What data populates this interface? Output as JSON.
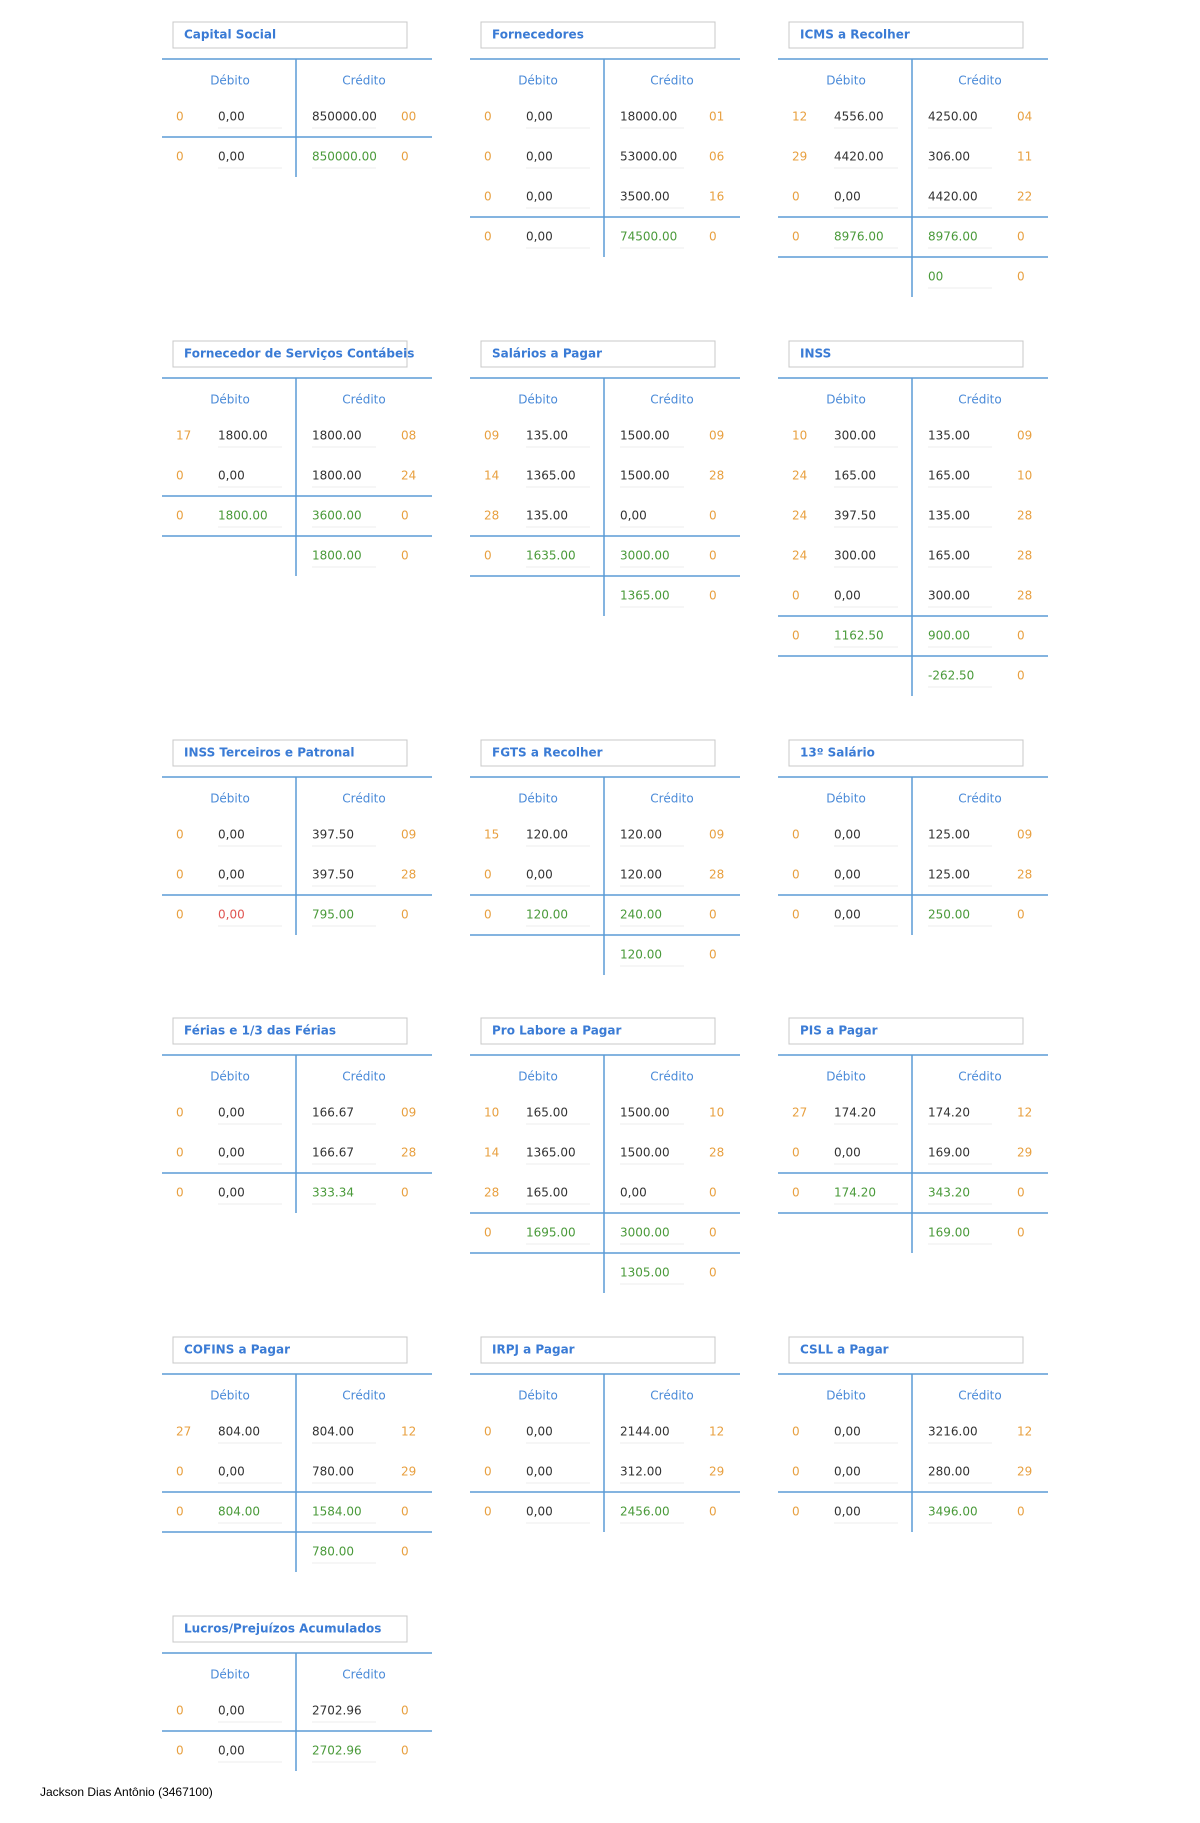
{
  "labels": {
    "debit": "Débito",
    "credit": "Crédito"
  },
  "accounts": [
    {
      "title": "Capital Social",
      "rows": [
        [
          "0",
          "0,00",
          "850000.00",
          "00"
        ]
      ],
      "total": [
        "0",
        "0,00",
        "850000.00",
        "0"
      ]
    },
    {
      "title": "Fornecedores",
      "rows": [
        [
          "0",
          "0,00",
          "18000.00",
          "01"
        ],
        [
          "0",
          "0,00",
          "53000.00",
          "06"
        ],
        [
          "0",
          "0,00",
          "3500.00",
          "16"
        ]
      ],
      "total": [
        "0",
        "0,00",
        "74500.00",
        "0"
      ]
    },
    {
      "title": "ICMS a Recolher",
      "rows": [
        [
          "12",
          "4556.00",
          "4250.00",
          "04"
        ],
        [
          "29",
          "4420.00",
          "306.00",
          "11"
        ],
        [
          "0",
          "0,00",
          "4420.00",
          "22"
        ]
      ],
      "total": [
        "0",
        "8976.00",
        "8976.00",
        "0"
      ],
      "balance": [
        "00",
        "0"
      ]
    },
    {
      "title": "Fornecedor de Serviços Contábeis",
      "rows": [
        [
          "17",
          "1800.00",
          "1800.00",
          "08"
        ],
        [
          "0",
          "0,00",
          "1800.00",
          "24"
        ]
      ],
      "total": [
        "0",
        "1800.00",
        "3600.00",
        "0"
      ],
      "balance": [
        "1800.00",
        "0"
      ]
    },
    {
      "title": "Salários a Pagar",
      "rows": [
        [
          "09",
          "135.00",
          "1500.00",
          "09"
        ],
        [
          "14",
          "1365.00",
          "1500.00",
          "28"
        ],
        [
          "28",
          "135.00",
          "0,00",
          "0"
        ]
      ],
      "total": [
        "0",
        "1635.00",
        "3000.00",
        "0"
      ],
      "balance": [
        "1365.00",
        "0"
      ]
    },
    {
      "title": "INSS",
      "rows": [
        [
          "10",
          "300.00",
          "135.00",
          "09"
        ],
        [
          "24",
          "165.00",
          "165.00",
          "10"
        ],
        [
          "24",
          "397.50",
          "135.00",
          "28"
        ],
        [
          "24",
          "300.00",
          "165.00",
          "28"
        ],
        [
          "0",
          "0,00",
          "300.00",
          "28"
        ]
      ],
      "total": [
        "0",
        "1162.50",
        "900.00",
        "0"
      ],
      "balance": [
        "-262.50",
        "0"
      ]
    },
    {
      "title": "INSS Terceiros e Patronal",
      "rows": [
        [
          "0",
          "0,00",
          "397.50",
          "09"
        ],
        [
          "0",
          "0,00",
          "397.50",
          "28"
        ]
      ],
      "total": [
        "0",
        "0,00",
        "795.00",
        "0"
      ],
      "total_debit_color": "#e05552"
    },
    {
      "title": "FGTS a Recolher",
      "rows": [
        [
          "15",
          "120.00",
          "120.00",
          "09"
        ],
        [
          "0",
          "0,00",
          "120.00",
          "28"
        ]
      ],
      "total": [
        "0",
        "120.00",
        "240.00",
        "0"
      ],
      "balance": [
        "120.00",
        "0"
      ]
    },
    {
      "title": "13º Salário",
      "rows": [
        [
          "0",
          "0,00",
          "125.00",
          "09"
        ],
        [
          "0",
          "0,00",
          "125.00",
          "28"
        ]
      ],
      "total": [
        "0",
        "0,00",
        "250.00",
        "0"
      ]
    },
    {
      "title": "Férias e 1/3 das Férias",
      "rows": [
        [
          "0",
          "0,00",
          "166.67",
          "09"
        ],
        [
          "0",
          "0,00",
          "166.67",
          "28"
        ]
      ],
      "total": [
        "0",
        "0,00",
        "333.34",
        "0"
      ]
    },
    {
      "title": "Pro Labore a Pagar",
      "rows": [
        [
          "10",
          "165.00",
          "1500.00",
          "10"
        ],
        [
          "14",
          "1365.00",
          "1500.00",
          "28"
        ],
        [
          "28",
          "165.00",
          "0,00",
          "0"
        ]
      ],
      "total": [
        "0",
        "1695.00",
        "3000.00",
        "0"
      ],
      "balance": [
        "1305.00",
        "0"
      ]
    },
    {
      "title": "PIS a Pagar",
      "rows": [
        [
          "27",
          "174.20",
          "174.20",
          "12"
        ],
        [
          "0",
          "0,00",
          "169.00",
          "29"
        ]
      ],
      "total": [
        "0",
        "174.20",
        "343.20",
        "0"
      ],
      "balance": [
        "169.00",
        "0"
      ]
    },
    {
      "title": "COFINS a Pagar",
      "rows": [
        [
          "27",
          "804.00",
          "804.00",
          "12"
        ],
        [
          "0",
          "0,00",
          "780.00",
          "29"
        ]
      ],
      "total": [
        "0",
        "804.00",
        "1584.00",
        "0"
      ],
      "balance": [
        "780.00",
        "0"
      ]
    },
    {
      "title": "IRPJ a Pagar",
      "rows": [
        [
          "0",
          "0,00",
          "2144.00",
          "12"
        ],
        [
          "0",
          "0,00",
          "312.00",
          "29"
        ]
      ],
      "total": [
        "0",
        "0,00",
        "2456.00",
        "0"
      ]
    },
    {
      "title": "CSLL a Pagar",
      "rows": [
        [
          "0",
          "0,00",
          "3216.00",
          "12"
        ],
        [
          "0",
          "0,00",
          "280.00",
          "29"
        ]
      ],
      "total": [
        "0",
        "0,00",
        "3496.00",
        "0"
      ]
    },
    {
      "title": "Lucros/Prejuízos Acumulados",
      "rows": [
        [
          "0",
          "0,00",
          "2702.96",
          "0"
        ]
      ],
      "total": [
        "0",
        "0,00",
        "2702.96",
        "0"
      ]
    }
  ],
  "footer": "Jackson Dias Antônio (3467100)"
}
